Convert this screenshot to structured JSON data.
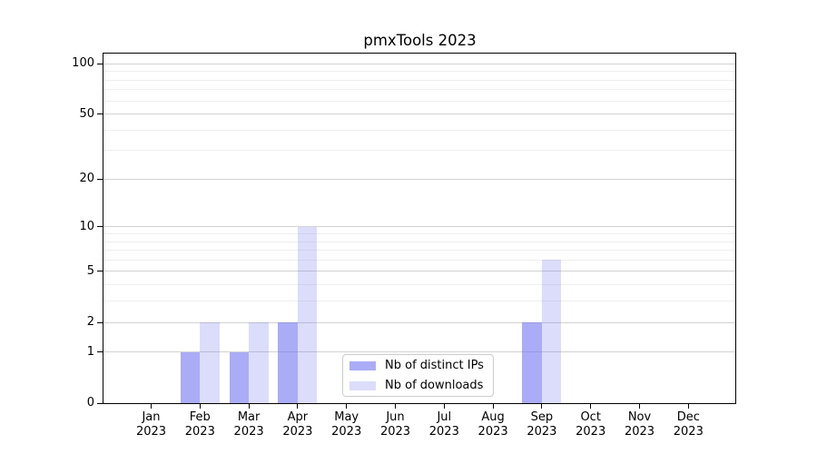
{
  "chart_data": {
    "type": "bar",
    "title": "pmxTools 2023",
    "x_axis": {
      "months": [
        "Jan",
        "Feb",
        "Mar",
        "Apr",
        "May",
        "Jun",
        "Jul",
        "Aug",
        "Sep",
        "Oct",
        "Nov",
        "Dec"
      ],
      "year_label": "2023"
    },
    "y_axis": {
      "scale": "log10(1+x)",
      "ticks": [
        0,
        1,
        2,
        5,
        10,
        20,
        50,
        100
      ],
      "minor_gridlines": [
        3,
        4,
        6,
        7,
        8,
        9,
        30,
        40,
        60,
        70,
        80,
        90
      ],
      "range": [
        0,
        115
      ]
    },
    "series": [
      {
        "name": "Nb of distinct IPs",
        "color": "rgba(108,112,240,0.58)",
        "values": [
          0,
          1,
          1,
          2,
          0,
          0,
          0,
          0,
          2,
          0,
          0,
          0
        ]
      },
      {
        "name": "Nb of downloads",
        "color": "rgba(108,112,240,0.24)",
        "values": [
          0,
          2,
          2,
          10,
          0,
          0,
          0,
          0,
          6,
          0,
          0,
          0
        ]
      }
    ],
    "legend": {
      "position": "inside lower center-left",
      "entries": [
        "Nb of distinct IPs",
        "Nb of downloads"
      ]
    },
    "grid": {
      "major_color": "#d2d2d2",
      "minor_color": "#eeeeee"
    }
  }
}
